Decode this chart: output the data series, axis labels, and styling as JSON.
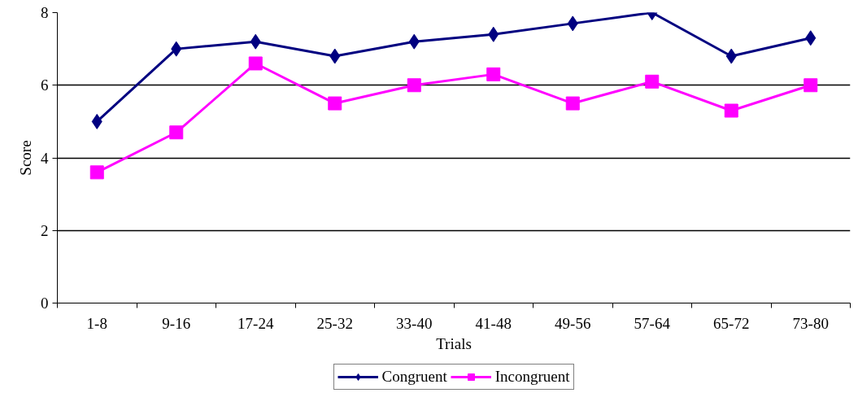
{
  "chart_data": {
    "type": "line",
    "xlabel": "Trials",
    "ylabel": "Score",
    "categories": [
      "1-8",
      "9-16",
      "17-24",
      "25-32",
      "33-40",
      "41-48",
      "49-56",
      "57-64",
      "65-72",
      "73-80"
    ],
    "series": [
      {
        "name": "Congruent",
        "color": "#000080",
        "marker": "diamond",
        "values": [
          5.0,
          7.0,
          7.2,
          6.8,
          7.2,
          7.4,
          7.7,
          8.0,
          6.8,
          7.3
        ]
      },
      {
        "name": "Incongruent",
        "color": "#ff00ff",
        "marker": "square",
        "values": [
          3.6,
          4.7,
          6.6,
          5.5,
          6.0,
          6.3,
          5.5,
          6.1,
          5.3,
          6.0
        ]
      }
    ],
    "ylim": [
      0,
      8
    ],
    "yticks": [
      0,
      2,
      4,
      6,
      8
    ],
    "grid": "y",
    "legend": "bottom",
    "line_style": "solid"
  }
}
